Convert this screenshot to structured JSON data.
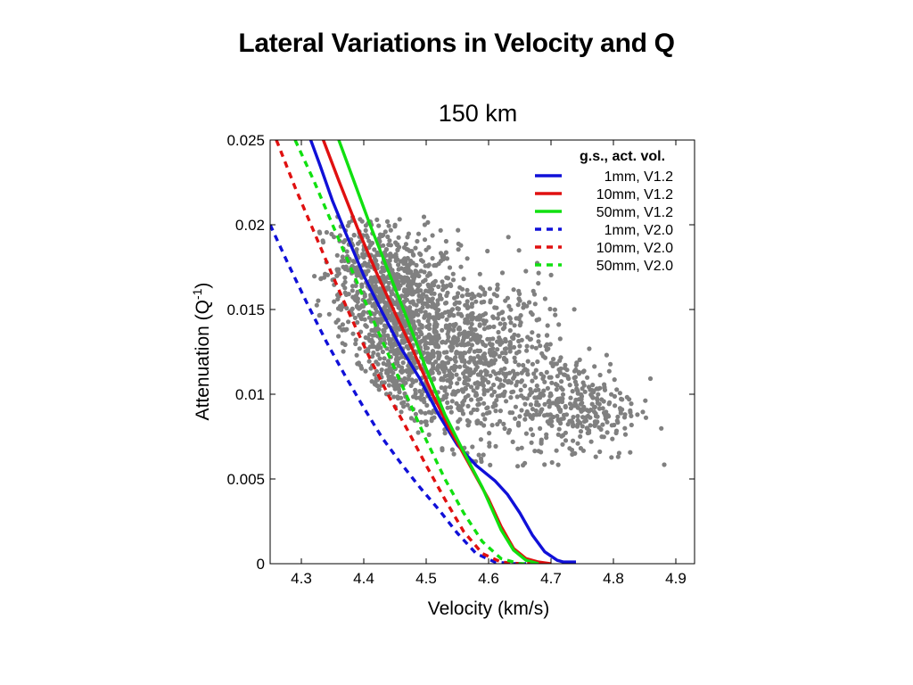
{
  "slide": {
    "title": "Lateral Variations in Velocity and Q"
  },
  "chart_data": {
    "type": "line",
    "title": "150 km",
    "xlabel": "Velocity (km/s)",
    "ylabel": "Attenuation (Q",
    "ylabel_sup": "-1",
    "ylabel_close": ")",
    "xlim": [
      4.25,
      4.93
    ],
    "ylim": [
      0,
      0.025
    ],
    "xticks": [
      4.3,
      4.4,
      4.5,
      4.6,
      4.7,
      4.8,
      4.9
    ],
    "xtick_labels": [
      "4.3",
      "4.4",
      "4.5",
      "4.6",
      "4.7",
      "4.8",
      "4.9"
    ],
    "yticks": [
      0,
      0.005,
      0.01,
      0.015,
      0.02,
      0.025
    ],
    "ytick_labels": [
      "0",
      "0.005",
      "0.01",
      "0.015",
      "0.02",
      "0.025"
    ],
    "grid": false,
    "legend": {
      "title": "g.s., act. vol.",
      "placement": "top-right"
    },
    "series": [
      {
        "name": "1mm, V1.2",
        "color": "#1010d8",
        "dash": "solid",
        "x": [
          4.31,
          4.33,
          4.35,
          4.37,
          4.4,
          4.43,
          4.46,
          4.49,
          4.52,
          4.55,
          4.58,
          4.61,
          4.63,
          4.65,
          4.67,
          4.69,
          4.71,
          4.72,
          4.74
        ],
        "y": [
          0.0255,
          0.0235,
          0.0214,
          0.0196,
          0.017,
          0.0148,
          0.0127,
          0.0109,
          0.0088,
          0.007,
          0.0058,
          0.0049,
          0.0041,
          0.003,
          0.0017,
          0.0007,
          0.0002,
          0.0001,
          0.0001
        ]
      },
      {
        "name": "10mm, V1.2",
        "color": "#e01010",
        "dash": "solid",
        "x": [
          4.33,
          4.36,
          4.39,
          4.42,
          4.45,
          4.48,
          4.51,
          4.54,
          4.57,
          4.6,
          4.62,
          4.64,
          4.66,
          4.68,
          4.7
        ],
        "y": [
          0.0255,
          0.0226,
          0.0198,
          0.0172,
          0.0148,
          0.0125,
          0.01,
          0.0078,
          0.0058,
          0.0038,
          0.0022,
          0.0009,
          0.0003,
          0.0001,
          0.0
        ],
        "note": ""
      },
      {
        "name": "50mm, V1.2",
        "color": "#10e010",
        "dash": "solid",
        "x": [
          4.36,
          4.38,
          4.41,
          4.44,
          4.47,
          4.5,
          4.53,
          4.56,
          4.59,
          4.62,
          4.64,
          4.66,
          4.68
        ],
        "y": [
          0.025,
          0.023,
          0.02,
          0.0172,
          0.0144,
          0.0115,
          0.0088,
          0.0066,
          0.0045,
          0.002,
          0.0008,
          0.0002,
          0.0
        ],
        "note": ""
      },
      {
        "name": "1mm, V2.0",
        "color": "#1010d8",
        "dash": "dashed",
        "x": [
          4.25,
          4.28,
          4.31,
          4.34,
          4.37,
          4.4,
          4.43,
          4.46,
          4.49,
          4.52,
          4.55,
          4.58,
          4.61,
          4.64,
          4.66
        ],
        "y": [
          0.02,
          0.0176,
          0.0153,
          0.0131,
          0.0111,
          0.0092,
          0.0074,
          0.0059,
          0.0045,
          0.0032,
          0.0018,
          0.0006,
          0.0001,
          0.0,
          0.0
        ]
      },
      {
        "name": "10mm, V2.0",
        "color": "#e01010",
        "dash": "dashed",
        "x": [
          4.26,
          4.29,
          4.32,
          4.35,
          4.38,
          4.41,
          4.44,
          4.47,
          4.5,
          4.53,
          4.56,
          4.59,
          4.62,
          4.65,
          4.67
        ],
        "y": [
          0.025,
          0.0222,
          0.0196,
          0.017,
          0.0145,
          0.0121,
          0.0099,
          0.0079,
          0.0058,
          0.0038,
          0.0019,
          0.0006,
          0.0001,
          0.0,
          0.0
        ]
      },
      {
        "name": "50mm, V2.0",
        "color": "#10e010",
        "dash": "dashed",
        "x": [
          4.29,
          4.32,
          4.35,
          4.38,
          4.41,
          4.44,
          4.47,
          4.5,
          4.53,
          4.56,
          4.59,
          4.62,
          4.65,
          4.67
        ],
        "y": [
          0.025,
          0.0226,
          0.02,
          0.0174,
          0.0148,
          0.0123,
          0.0098,
          0.0073,
          0.005,
          0.003,
          0.0013,
          0.0003,
          0.0,
          0.0
        ]
      }
    ],
    "scatter": {
      "color": "#808080",
      "description_counts": "",
      "clusters": [
        {
          "cx": 4.46,
          "cy": 0.014,
          "sx": 0.045,
          "sy": 0.0028,
          "n": 900
        },
        {
          "cx": 4.58,
          "cy": 0.012,
          "sx": 0.06,
          "sy": 0.0025,
          "n": 700
        },
        {
          "cx": 4.74,
          "cy": 0.0093,
          "sx": 0.05,
          "sy": 0.0016,
          "n": 320
        },
        {
          "cx": 4.4,
          "cy": 0.0172,
          "sx": 0.04,
          "sy": 0.0018,
          "n": 300
        }
      ],
      "x_range": [
        4.32,
        4.9
      ],
      "y_range": [
        0.0055,
        0.0205
      ]
    }
  }
}
